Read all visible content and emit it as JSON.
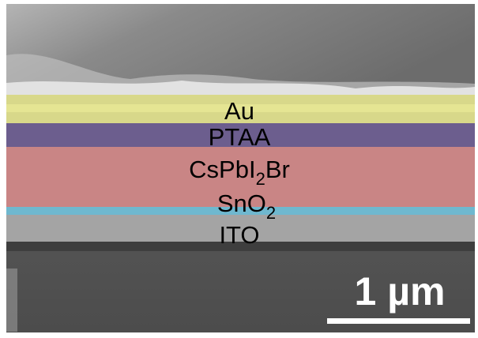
{
  "layers": [
    {
      "parts": [
        {
          "text": "Au"
        }
      ]
    },
    {
      "parts": [
        {
          "text": "PTAA"
        }
      ]
    },
    {
      "parts": [
        {
          "text": "CsPbI"
        },
        {
          "text": "2",
          "sub": true
        },
        {
          "text": "Br"
        }
      ]
    },
    {
      "parts": [
        {
          "text": "SnO"
        },
        {
          "text": "2",
          "sub": true
        }
      ]
    },
    {
      "parts": [
        {
          "text": "ITO"
        }
      ]
    }
  ],
  "scale_bar": {
    "label": "1 µm"
  }
}
